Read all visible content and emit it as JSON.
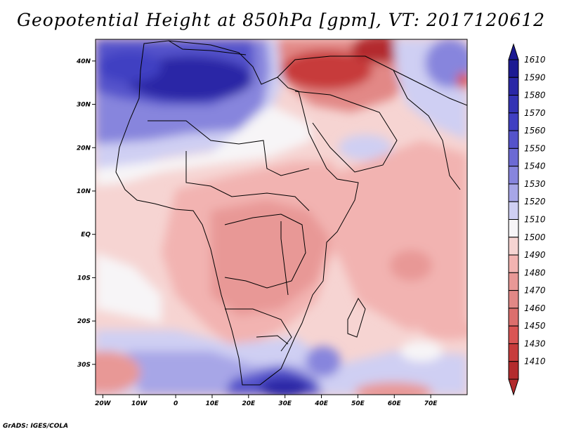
{
  "title": "Geopotential Height at 850hPa [gpm], VT: 2017120612",
  "credit": "GrADS: IGES/COLA",
  "map": {
    "variable": "Geopotential Height",
    "level": "850hPa",
    "units": "gpm",
    "valid_time": "2017120612",
    "lon_range": [
      -22,
      80
    ],
    "lat_range": [
      -37,
      45
    ],
    "lat_ticks": [
      {
        "value": 40,
        "label": "40N"
      },
      {
        "value": 30,
        "label": "30N"
      },
      {
        "value": 20,
        "label": "20N"
      },
      {
        "value": 10,
        "label": "10N"
      },
      {
        "value": 0,
        "label": "EQ"
      },
      {
        "value": -10,
        "label": "10S"
      },
      {
        "value": -20,
        "label": "20S"
      },
      {
        "value": -30,
        "label": "30S"
      }
    ],
    "lon_ticks": [
      {
        "value": -20,
        "label": "20W"
      },
      {
        "value": -10,
        "label": "10W"
      },
      {
        "value": 0,
        "label": "0"
      },
      {
        "value": 10,
        "label": "10E"
      },
      {
        "value": 20,
        "label": "20E"
      },
      {
        "value": 30,
        "label": "30E"
      },
      {
        "value": 40,
        "label": "40E"
      },
      {
        "value": 50,
        "label": "50E"
      },
      {
        "value": 60,
        "label": "60E"
      },
      {
        "value": 70,
        "label": "70E"
      }
    ]
  },
  "colorbar": {
    "levels": [
      {
        "label": "1610",
        "color": "#1c1a93"
      },
      {
        "label": "1590",
        "color": "#2a27a6"
      },
      {
        "label": "1580",
        "color": "#3433b4"
      },
      {
        "label": "1570",
        "color": "#403fc2"
      },
      {
        "label": "1560",
        "color": "#5553cb"
      },
      {
        "label": "1550",
        "color": "#6c6ad4"
      },
      {
        "label": "1540",
        "color": "#8785dd"
      },
      {
        "label": "1530",
        "color": "#a7a6e7"
      },
      {
        "label": "1520",
        "color": "#cfcff3"
      },
      {
        "label": "1510",
        "color": "#f7f5f7"
      },
      {
        "label": "1500",
        "color": "#f6d4d2"
      },
      {
        "label": "1490",
        "color": "#f2b3b1"
      },
      {
        "label": "1480",
        "color": "#e89896"
      },
      {
        "label": "1470",
        "color": "#e28886"
      },
      {
        "label": "1460",
        "color": "#dc6f6d"
      },
      {
        "label": "1450",
        "color": "#d95554"
      },
      {
        "label": "1430",
        "color": "#c73b3b"
      },
      {
        "label": "1410",
        "color": "#b32b2d"
      }
    ]
  }
}
